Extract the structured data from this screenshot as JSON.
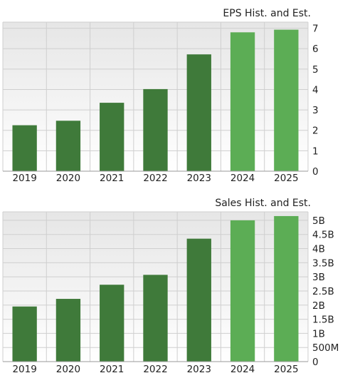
{
  "chart_data": [
    {
      "type": "bar",
      "title": "EPS Hist. and Est.",
      "categories": [
        "2019",
        "2020",
        "2021",
        "2022",
        "2023",
        "2024",
        "2025"
      ],
      "values": [
        2.25,
        2.47,
        3.35,
        4.02,
        5.72,
        6.8,
        6.93
      ],
      "estimate_from_index": 5,
      "y_ticks": [
        "0",
        "1",
        "2",
        "3",
        "4",
        "5",
        "6",
        "7"
      ],
      "ylim": [
        0,
        7.3
      ],
      "grid": true,
      "ytick_position": "right"
    },
    {
      "type": "bar",
      "title": "Sales Hist. and Est.",
      "categories": [
        "2019",
        "2020",
        "2021",
        "2022",
        "2023",
        "2024",
        "2025"
      ],
      "values": [
        1.95,
        2.22,
        2.72,
        3.07,
        4.35,
        5.0,
        5.15
      ],
      "estimate_from_index": 5,
      "y_ticks": [
        "0",
        "500M",
        "1B",
        "1.5B",
        "2B",
        "2.5B",
        "3B",
        "3.5B",
        "4B",
        "4.5B",
        "5B"
      ],
      "ylim": [
        0,
        5.3
      ],
      "grid": true,
      "ytick_position": "right"
    }
  ],
  "colors": {
    "historical": "#3f7a3a",
    "estimate": "#5cad55",
    "grid": "#cfcfcf",
    "plot_bg_top": "#e6e6e6",
    "plot_bg_bottom": "#ffffff"
  }
}
